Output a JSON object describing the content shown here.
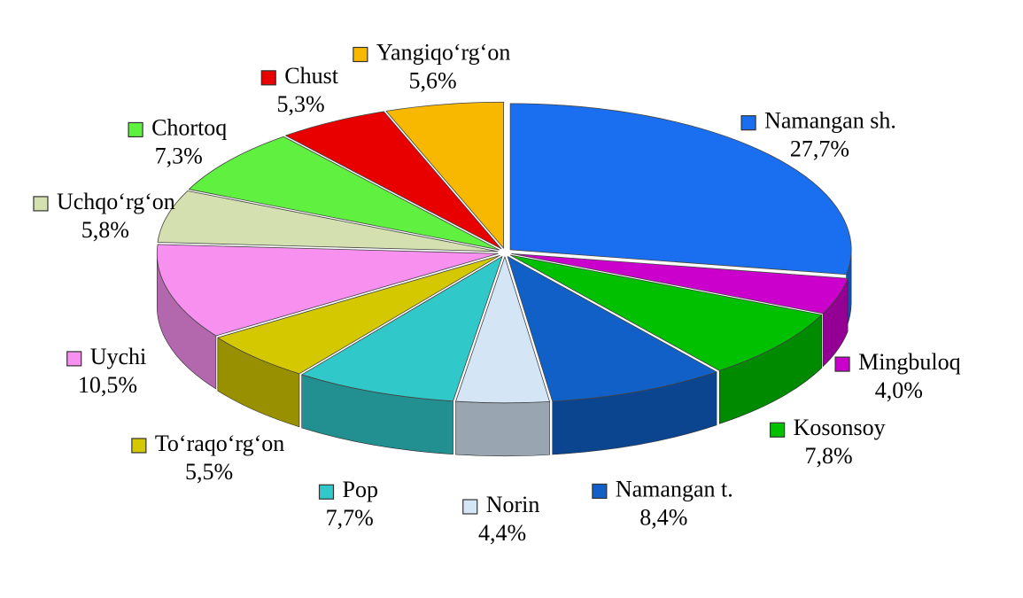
{
  "chart_data": {
    "type": "pie",
    "categories": [
      "Namangan sh.",
      "Mingbuloq",
      "Kosonsoy",
      "Namangan t.",
      "Norin",
      "Pop",
      "To‘raqo‘rg‘on",
      "Uychi",
      "Uchqo‘rg‘on",
      "Chortoq",
      "Chust",
      "Yangiqo‘rg‘on"
    ],
    "values": [
      27.7,
      4.0,
      7.8,
      8.4,
      4.4,
      7.7,
      5.5,
      10.5,
      5.8,
      7.3,
      5.3,
      5.6
    ],
    "value_labels": [
      "27,7%",
      "4,0%",
      "7,8%",
      "8,4%",
      "4,4%",
      "7,7%",
      "5,5%",
      "10,5%",
      "5,8%",
      "7,3%",
      "5,3%",
      "5,6%"
    ],
    "colors": [
      "#1a6ef0",
      "#cc00cc",
      "#00c000",
      "#1060c8",
      "#d4e6f6",
      "#30c8c8",
      "#d4c800",
      "#f890f0",
      "#d4e0b0",
      "#60f040",
      "#e80000",
      "#f8b800"
    ]
  }
}
